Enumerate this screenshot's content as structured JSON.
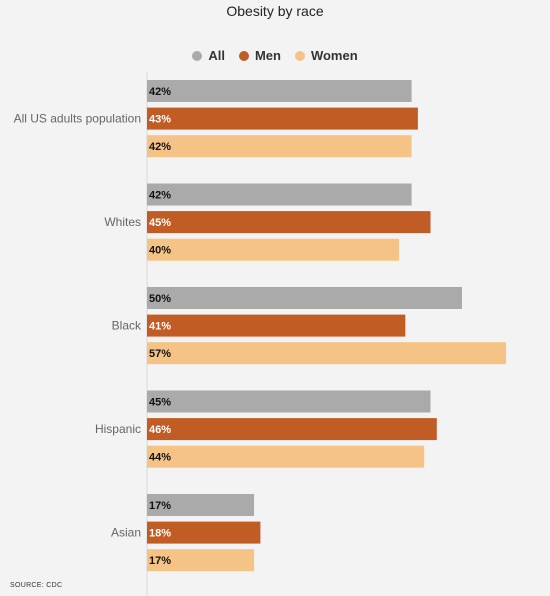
{
  "chart_data": {
    "type": "bar",
    "orientation": "horizontal",
    "title": "Obesity by race",
    "source": "SOURCE: CDC",
    "categories": [
      "All US adults population",
      "Whites",
      "Black",
      "Hispanic",
      "Asian"
    ],
    "series": [
      {
        "name": "All",
        "color": "#aaaaaa",
        "values": [
          42,
          42,
          50,
          45,
          17
        ],
        "labels": [
          "42%",
          "42%",
          "50%",
          "45%",
          "17%"
        ],
        "label_color": "#111111"
      },
      {
        "name": "Men",
        "color": "#c25c25",
        "values": [
          43,
          45,
          41,
          46,
          18
        ],
        "labels": [
          "43%",
          "45%",
          "41%",
          "46%",
          "18%"
        ],
        "label_color": "#ffffff"
      },
      {
        "name": "Women",
        "color": "#f6c386",
        "values": [
          42,
          40,
          57,
          44,
          17
        ],
        "labels": [
          "42%",
          "40%",
          "57%",
          "44%",
          "17%"
        ],
        "label_color": "#111111"
      }
    ],
    "xlim": [
      0,
      60
    ],
    "legend_position": "top-center",
    "grid": false
  }
}
